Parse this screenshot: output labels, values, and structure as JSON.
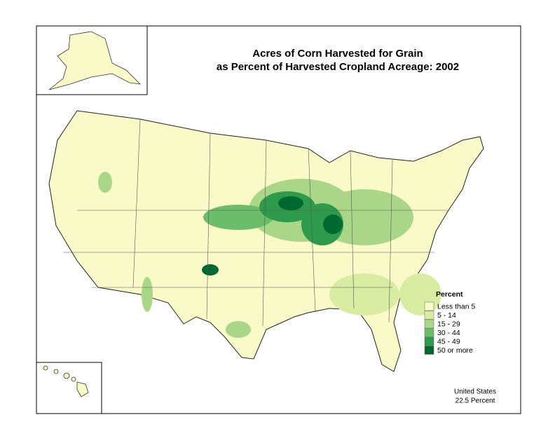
{
  "title": [
    "Acres of Corn Harvested for Grain",
    "as Percent of Harvested Cropland Acreage:  2002"
  ],
  "legend": {
    "title": "Percent",
    "items": [
      {
        "label": "Less than 5",
        "color": "#fafac8"
      },
      {
        "label": "5 - 14",
        "color": "#d9eda2"
      },
      {
        "label": "15 - 29",
        "color": "#a9d787"
      },
      {
        "label": "30 - 44",
        "color": "#6cbd6a"
      },
      {
        "label": "45 - 49",
        "color": "#2e9a4c"
      },
      {
        "label": "50 or more",
        "color": "#00692f"
      }
    ]
  },
  "note": [
    "United States",
    "22.5 Percent"
  ]
}
